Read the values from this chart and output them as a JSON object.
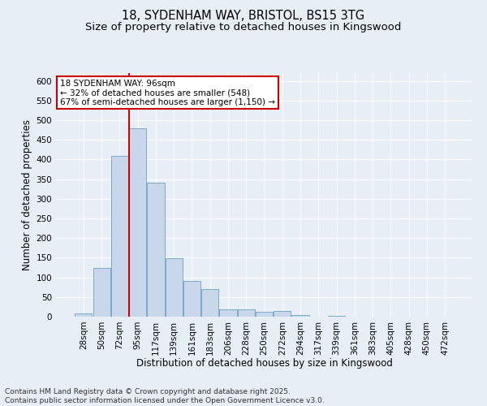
{
  "title_line1": "18, SYDENHAM WAY, BRISTOL, BS15 3TG",
  "title_line2": "Size of property relative to detached houses in Kingswood",
  "xlabel": "Distribution of detached houses by size in Kingswood",
  "ylabel": "Number of detached properties",
  "categories": [
    "28sqm",
    "50sqm",
    "72sqm",
    "95sqm",
    "117sqm",
    "139sqm",
    "161sqm",
    "183sqm",
    "206sqm",
    "228sqm",
    "250sqm",
    "272sqm",
    "294sqm",
    "317sqm",
    "339sqm",
    "361sqm",
    "383sqm",
    "405sqm",
    "428sqm",
    "450sqm",
    "472sqm"
  ],
  "values": [
    8,
    125,
    410,
    480,
    340,
    148,
    90,
    70,
    18,
    18,
    12,
    15,
    5,
    0,
    2,
    0,
    0,
    0,
    0,
    0,
    0
  ],
  "bar_color": "#c8d8ea",
  "bar_edgecolor": "#7aaac8",
  "vline_color": "#cc0000",
  "ylim": [
    0,
    620
  ],
  "yticks": [
    0,
    50,
    100,
    150,
    200,
    250,
    300,
    350,
    400,
    450,
    500,
    550,
    600
  ],
  "annotation_line1": "18 SYDENHAM WAY: 96sqm",
  "annotation_line2": "← 32% of detached houses are smaller (548)",
  "annotation_line3": "67% of semi-detached houses are larger (1,150) →",
  "annotation_box_facecolor": "#ffffff",
  "annotation_box_edgecolor": "#cc0000",
  "footer_line1": "Contains HM Land Registry data © Crown copyright and database right 2025.",
  "footer_line2": "Contains public sector information licensed under the Open Government Licence v3.0.",
  "background_color": "#e8eef5",
  "grid_color": "#ffffff",
  "title_fontsize": 10.5,
  "subtitle_fontsize": 9.5,
  "ylabel_fontsize": 8.5,
  "xlabel_fontsize": 8.5,
  "tick_fontsize": 7.5,
  "footer_fontsize": 6.5,
  "annotation_fontsize": 7.5
}
